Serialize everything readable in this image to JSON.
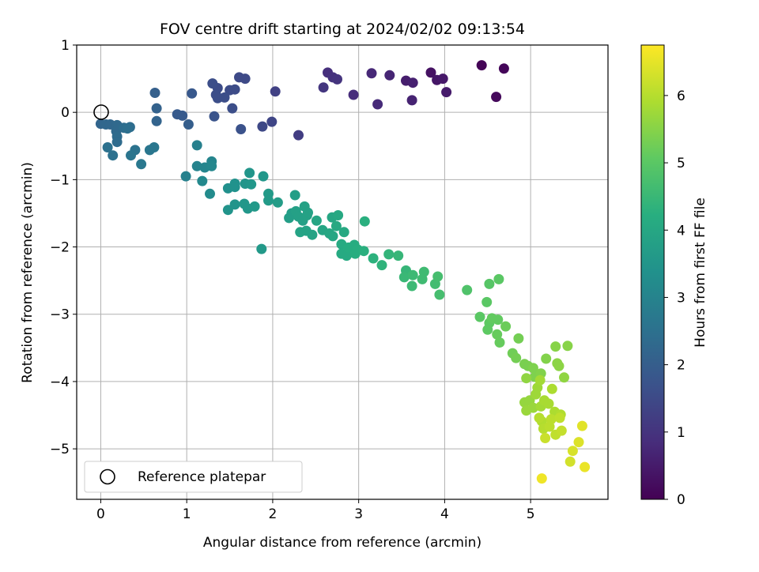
{
  "chart_data": {
    "type": "scatter",
    "title": "FOV centre drift starting at 2024/02/02 09:13:54",
    "xlabel": "Angular distance from reference (arcmin)",
    "ylabel": "Rotation from reference (arcmin)",
    "xlim": [
      -0.28,
      5.9
    ],
    "ylim": [
      -5.75,
      1.0
    ],
    "xticks": [
      "0",
      "1",
      "2",
      "3",
      "4",
      "5"
    ],
    "yticks": [
      "1",
      "0",
      "−1",
      "−2",
      "−3",
      "−4",
      "−5"
    ],
    "grid": true,
    "colormap": "viridis",
    "colorbar": {
      "label": "Hours from first FF file",
      "range": [
        0,
        6.75
      ],
      "ticks": [
        "0",
        "1",
        "2",
        "3",
        "4",
        "5",
        "6"
      ]
    },
    "reference": {
      "x": 0,
      "y": 0,
      "label": "Reference platepar"
    },
    "legend_position": "lower-left",
    "points": [
      [
        4.43,
        0.7,
        0.05
      ],
      [
        4.69,
        0.65,
        0.1
      ],
      [
        4.6,
        0.23,
        0.15
      ],
      [
        3.84,
        0.59,
        0.3
      ],
      [
        3.91,
        0.48,
        0.4
      ],
      [
        3.98,
        0.5,
        0.45
      ],
      [
        4.02,
        0.3,
        0.5
      ],
      [
        3.55,
        0.47,
        0.55
      ],
      [
        3.63,
        0.44,
        0.6
      ],
      [
        3.62,
        0.18,
        0.65
      ],
      [
        3.36,
        0.55,
        0.7
      ],
      [
        3.15,
        0.58,
        0.75
      ],
      [
        3.22,
        0.12,
        0.8
      ],
      [
        2.94,
        0.26,
        0.85
      ],
      [
        2.64,
        0.59,
        0.9
      ],
      [
        2.7,
        0.52,
        0.95
      ],
      [
        2.75,
        0.49,
        1.0
      ],
      [
        2.59,
        0.37,
        1.05
      ],
      [
        2.3,
        -0.34,
        1.2
      ],
      [
        2.03,
        0.31,
        1.3
      ],
      [
        1.99,
        -0.14,
        1.4
      ],
      [
        1.88,
        -0.21,
        1.45
      ],
      [
        1.68,
        0.5,
        1.5
      ],
      [
        1.61,
        0.52,
        1.5
      ],
      [
        1.56,
        0.34,
        1.55
      ],
      [
        1.5,
        0.33,
        1.55
      ],
      [
        1.36,
        0.36,
        1.55
      ],
      [
        1.3,
        0.43,
        1.6
      ],
      [
        1.36,
        0.21,
        1.6
      ],
      [
        1.44,
        0.22,
        1.6
      ],
      [
        1.34,
        0.26,
        1.6
      ],
      [
        1.53,
        0.06,
        1.6
      ],
      [
        1.63,
        -0.25,
        1.7
      ],
      [
        1.32,
        -0.06,
        1.75
      ],
      [
        1.06,
        0.28,
        1.85
      ],
      [
        0.89,
        -0.03,
        1.9
      ],
      [
        0.95,
        -0.05,
        1.9
      ],
      [
        1.02,
        -0.18,
        2.0
      ],
      [
        0.63,
        0.29,
        2.05
      ],
      [
        0.65,
        0.06,
        2.1
      ],
      [
        0.65,
        -0.13,
        2.15
      ],
      [
        0.0,
        -0.17,
        2.2
      ],
      [
        0.06,
        -0.18,
        2.25
      ],
      [
        0.11,
        -0.18,
        2.25
      ],
      [
        0.19,
        -0.19,
        2.3
      ],
      [
        0.18,
        -0.28,
        2.3
      ],
      [
        0.19,
        -0.36,
        2.35
      ],
      [
        0.19,
        -0.44,
        2.35
      ],
      [
        0.27,
        -0.23,
        2.4
      ],
      [
        0.34,
        -0.22,
        2.4
      ],
      [
        0.31,
        -0.24,
        2.45
      ],
      [
        0.08,
        -0.52,
        2.5
      ],
      [
        0.14,
        -0.64,
        2.5
      ],
      [
        0.4,
        -0.56,
        2.55
      ],
      [
        0.35,
        -0.64,
        2.6
      ],
      [
        0.57,
        -0.56,
        2.65
      ],
      [
        0.62,
        -0.52,
        2.65
      ],
      [
        0.47,
        -0.77,
        2.7
      ],
      [
        1.12,
        -0.49,
        2.9
      ],
      [
        0.99,
        -0.95,
        2.95
      ],
      [
        1.12,
        -0.8,
        3.0
      ],
      [
        1.29,
        -0.73,
        3.05
      ],
      [
        1.21,
        -0.82,
        3.05
      ],
      [
        1.29,
        -0.8,
        3.1
      ],
      [
        1.18,
        -1.02,
        3.15
      ],
      [
        1.27,
        -1.21,
        3.2
      ],
      [
        1.48,
        -1.13,
        3.35
      ],
      [
        1.56,
        -1.06,
        3.4
      ],
      [
        1.56,
        -1.11,
        3.4
      ],
      [
        1.48,
        -1.45,
        3.45
      ],
      [
        1.56,
        -1.37,
        3.45
      ],
      [
        1.73,
        -0.9,
        3.5
      ],
      [
        1.68,
        -1.06,
        3.5
      ],
      [
        1.75,
        -1.07,
        3.55
      ],
      [
        1.89,
        -0.95,
        3.55
      ],
      [
        1.67,
        -1.36,
        3.55
      ],
      [
        1.71,
        -1.43,
        3.55
      ],
      [
        1.79,
        -1.4,
        3.6
      ],
      [
        1.87,
        -2.03,
        3.6
      ],
      [
        1.95,
        -1.21,
        3.65
      ],
      [
        1.95,
        -1.31,
        3.65
      ],
      [
        2.06,
        -1.34,
        3.7
      ],
      [
        2.26,
        -1.23,
        3.75
      ],
      [
        2.22,
        -1.5,
        3.75
      ],
      [
        2.19,
        -1.57,
        3.75
      ],
      [
        2.27,
        -1.47,
        3.8
      ],
      [
        2.3,
        -1.55,
        3.8
      ],
      [
        2.35,
        -1.61,
        3.8
      ],
      [
        2.4,
        -1.53,
        3.85
      ],
      [
        2.37,
        -1.4,
        3.85
      ],
      [
        2.41,
        -1.49,
        3.85
      ],
      [
        2.32,
        -1.78,
        3.9
      ],
      [
        2.39,
        -1.76,
        3.9
      ],
      [
        2.46,
        -1.82,
        3.9
      ],
      [
        2.51,
        -1.61,
        3.95
      ],
      [
        2.58,
        -1.75,
        3.95
      ],
      [
        2.66,
        -1.8,
        4.0
      ],
      [
        2.7,
        -1.84,
        4.0
      ],
      [
        2.69,
        -1.56,
        4.0
      ],
      [
        2.76,
        -1.53,
        4.05
      ],
      [
        2.74,
        -1.69,
        4.05
      ],
      [
        2.83,
        -1.78,
        4.05
      ],
      [
        2.8,
        -1.96,
        4.1
      ],
      [
        2.8,
        -2.1,
        4.1
      ],
      [
        2.86,
        -2.13,
        4.1
      ],
      [
        2.88,
        -2.01,
        4.15
      ],
      [
        2.95,
        -1.97,
        4.15
      ],
      [
        2.96,
        -2.1,
        4.2
      ],
      [
        2.99,
        -2.04,
        4.2
      ],
      [
        3.06,
        -2.06,
        4.25
      ],
      [
        3.07,
        -1.62,
        4.25
      ],
      [
        3.17,
        -2.17,
        4.3
      ],
      [
        3.27,
        -2.27,
        4.35
      ],
      [
        3.35,
        -2.11,
        4.4
      ],
      [
        3.46,
        -2.13,
        4.45
      ],
      [
        3.55,
        -2.35,
        4.45
      ],
      [
        3.53,
        -2.45,
        4.5
      ],
      [
        3.63,
        -2.42,
        4.55
      ],
      [
        3.62,
        -2.58,
        4.55
      ],
      [
        3.76,
        -2.37,
        4.6
      ],
      [
        3.74,
        -2.48,
        4.6
      ],
      [
        3.89,
        -2.55,
        4.65
      ],
      [
        3.92,
        -2.44,
        4.7
      ],
      [
        3.94,
        -2.71,
        4.7
      ],
      [
        4.26,
        -2.64,
        4.85
      ],
      [
        4.52,
        -2.55,
        4.95
      ],
      [
        4.41,
        -3.04,
        5.0
      ],
      [
        4.49,
        -2.82,
        5.0
      ],
      [
        4.63,
        -2.48,
        5.0
      ],
      [
        4.52,
        -3.13,
        5.05
      ],
      [
        4.5,
        -3.23,
        5.05
      ],
      [
        4.55,
        -3.06,
        5.1
      ],
      [
        4.62,
        -3.08,
        5.1
      ],
      [
        4.61,
        -3.3,
        5.15
      ],
      [
        4.64,
        -3.42,
        5.15
      ],
      [
        4.71,
        -3.18,
        5.2
      ],
      [
        4.79,
        -3.58,
        5.25
      ],
      [
        4.83,
        -3.65,
        5.3
      ],
      [
        4.86,
        -3.36,
        5.3
      ],
      [
        4.93,
        -3.74,
        5.35
      ],
      [
        4.97,
        -3.77,
        5.35
      ],
      [
        5.03,
        -3.8,
        5.4
      ],
      [
        5.05,
        -3.93,
        5.4
      ],
      [
        5.12,
        -3.88,
        5.45
      ],
      [
        5.18,
        -3.66,
        5.45
      ],
      [
        5.29,
        -3.48,
        5.5
      ],
      [
        5.43,
        -3.47,
        5.5
      ],
      [
        5.31,
        -3.73,
        5.55
      ],
      [
        5.33,
        -3.77,
        5.55
      ],
      [
        5.39,
        -3.94,
        5.6
      ],
      [
        4.95,
        -3.95,
        5.6
      ],
      [
        4.93,
        -4.31,
        5.65
      ],
      [
        4.99,
        -4.28,
        5.65
      ],
      [
        4.95,
        -4.43,
        5.7
      ],
      [
        5.03,
        -4.39,
        5.7
      ],
      [
        5.06,
        -4.19,
        5.75
      ],
      [
        5.08,
        -4.09,
        5.75
      ],
      [
        5.11,
        -3.98,
        5.8
      ],
      [
        5.12,
        -4.37,
        5.8
      ],
      [
        5.16,
        -4.28,
        5.85
      ],
      [
        5.21,
        -4.33,
        5.85
      ],
      [
        5.25,
        -4.11,
        5.9
      ],
      [
        5.28,
        -4.45,
        5.9
      ],
      [
        5.35,
        -4.49,
        5.95
      ],
      [
        5.13,
        -4.59,
        5.95
      ],
      [
        5.1,
        -4.54,
        6.0
      ],
      [
        5.15,
        -4.7,
        6.0
      ],
      [
        5.22,
        -4.67,
        6.05
      ],
      [
        5.24,
        -4.56,
        6.05
      ],
      [
        5.34,
        -4.54,
        6.1
      ],
      [
        5.29,
        -4.79,
        6.1
      ],
      [
        5.36,
        -4.73,
        6.15
      ],
      [
        5.17,
        -4.84,
        6.2
      ],
      [
        5.46,
        -5.19,
        6.3
      ],
      [
        5.49,
        -5.03,
        6.35
      ],
      [
        5.56,
        -4.9,
        6.4
      ],
      [
        5.6,
        -4.66,
        6.45
      ],
      [
        5.63,
        -5.27,
        6.55
      ],
      [
        5.13,
        -5.44,
        6.6
      ]
    ]
  }
}
